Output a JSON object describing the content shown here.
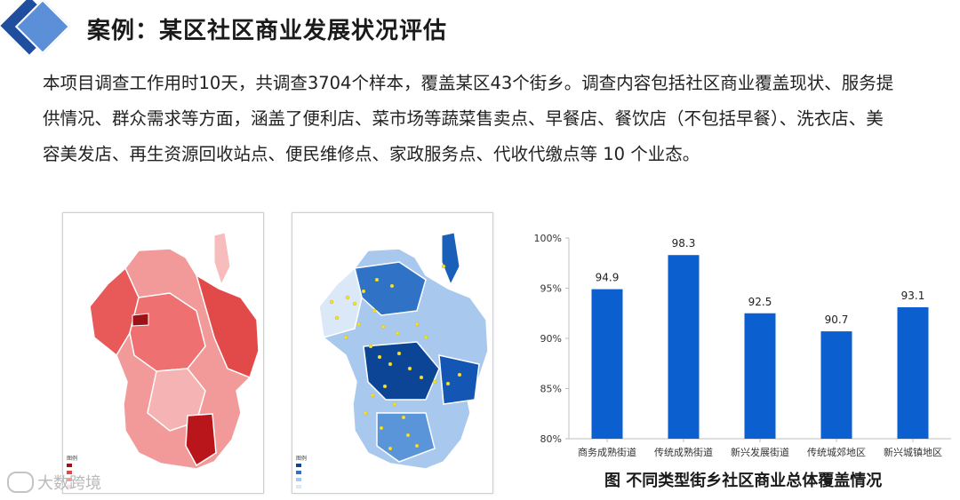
{
  "header": {
    "title": "案例：某区社区商业发展状况评估"
  },
  "intro": {
    "text": "本项目调查工作用时10天，共调查3704个样本，覆盖某区43个街乡。调查内容包括社区商业覆盖现状、服务提供情况、群众需求等方面，涵盖了便利店、菜市场等蔬菜售卖点、早餐店、餐饮店（不包括早餐）、洗衣店、美容美发店、再生资源回收站点、便民维修点、家政服务点、代收代缴点等 10 个业态。"
  },
  "maps": {
    "left": {
      "legend_title": "图例",
      "theme_color": "#e33b3b"
    },
    "right": {
      "legend_title": "图例",
      "theme_color": "#1a63b8"
    }
  },
  "chart_data": {
    "type": "bar",
    "categories": [
      "商务成熟街道",
      "传统成熟街道",
      "新兴发展街道",
      "传统城郊地区",
      "新兴城镇地区"
    ],
    "values": [
      94.9,
      98.3,
      92.5,
      90.7,
      93.1
    ],
    "ylim": [
      80,
      100
    ],
    "yticks": [
      80,
      85,
      90,
      95,
      100
    ],
    "ytick_labels": [
      "80%",
      "85%",
      "90%",
      "95%",
      "100%"
    ],
    "bar_color": "#0b5fcf",
    "grid": false,
    "title": "",
    "xlabel": "",
    "ylabel": ""
  },
  "chart_caption": "图 不同类型街乡社区商业总体覆盖情况",
  "watermark": {
    "text": "大数跨境"
  }
}
